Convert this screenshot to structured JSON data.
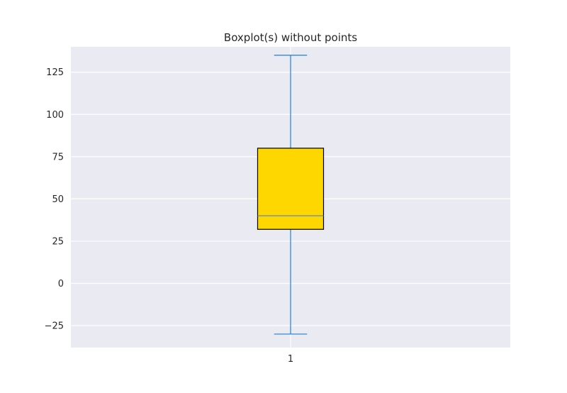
{
  "chart_data": {
    "type": "box",
    "title": "Boxplot(s) without points",
    "xlabel": "",
    "ylabel": "",
    "categories": [
      "1"
    ],
    "series": [
      {
        "whisker_low": -30,
        "q1": 32,
        "median": 40,
        "q3": 80,
        "whisker_high": 135
      }
    ],
    "ylim": [
      -38,
      140
    ],
    "y_ticks": [
      -25,
      0,
      25,
      50,
      75,
      100,
      125
    ],
    "y_tick_labels": [
      "−25",
      "0",
      "25",
      "50",
      "75",
      "100",
      "125"
    ],
    "x_tick_labels": [
      "1"
    ],
    "grid": true,
    "legend": "none",
    "colors": {
      "plot_background": "#eaeaf2",
      "grid": "#ffffff",
      "box_fill": "#ffd700",
      "box_edge": "#000000",
      "whisker": "#1f7fd4",
      "median": "#6b8fb4"
    }
  }
}
